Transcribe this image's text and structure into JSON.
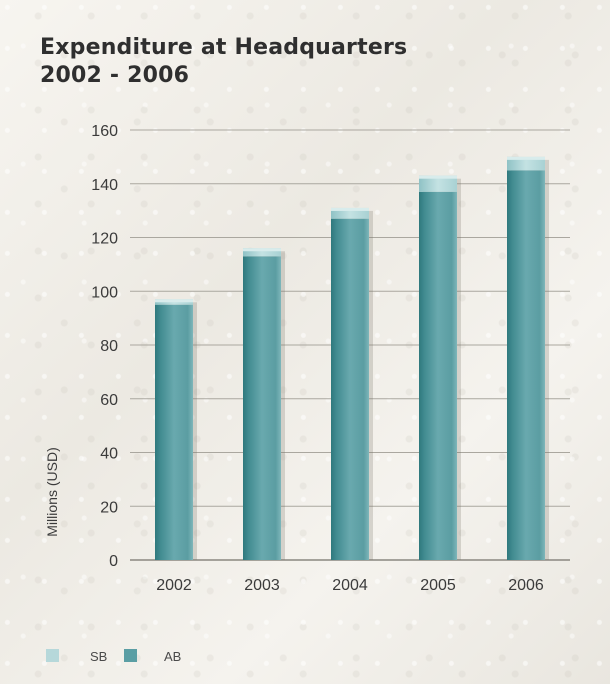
{
  "chart_data": {
    "type": "bar",
    "title": [
      "Expenditure at Headquarters",
      "2002 - 2006"
    ],
    "xlabel": "",
    "ylabel": "Millions (USD)",
    "ylim": [
      0,
      160
    ],
    "y_ticks": [
      0,
      20,
      40,
      60,
      80,
      100,
      120,
      140,
      160
    ],
    "categories": [
      "2002",
      "2003",
      "2004",
      "2005",
      "2006"
    ],
    "series": [
      {
        "name": "AB",
        "color": "#5a9ea4",
        "values": [
          95,
          113,
          127,
          137,
          145
        ]
      },
      {
        "name": "SB",
        "color": "#b6d8da",
        "values": [
          2,
          3,
          4,
          6,
          5
        ]
      }
    ],
    "stacked": true,
    "grid": true,
    "legend_position": "bottom-left",
    "colors": {
      "gridline": "#aaa79f",
      "axis": "#8a8780",
      "text": "#333333"
    }
  }
}
